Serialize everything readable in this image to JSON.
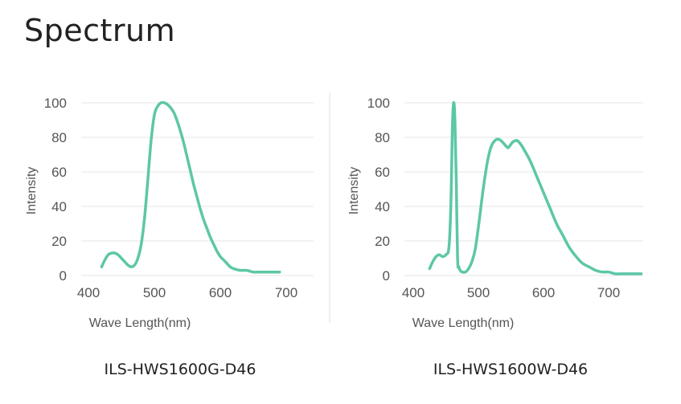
{
  "page": {
    "title": "Spectrum"
  },
  "colors": {
    "line": "#5cc7a6"
  },
  "chart_data": [
    {
      "type": "line",
      "title": "",
      "caption": "ILS-HWS1600G-D46",
      "xlabel": "Wave Length(nm)",
      "ylabel": "Intensity",
      "xlim": [
        400,
        700
      ],
      "ylim": [
        0,
        100
      ],
      "xticks": [
        400,
        500,
        600,
        700
      ],
      "yticks": [
        0,
        20,
        40,
        60,
        80,
        100
      ],
      "grid": "horizontal",
      "series": [
        {
          "x": [
            420,
            425,
            430,
            435,
            440,
            445,
            450,
            455,
            460,
            465,
            470,
            475,
            480,
            485,
            490,
            495,
            500,
            505,
            510,
            515,
            520,
            525,
            530,
            535,
            540,
            545,
            550,
            555,
            560,
            565,
            570,
            575,
            580,
            585,
            590,
            595,
            600,
            605,
            610,
            615,
            620,
            630,
            640,
            650,
            660,
            670,
            680,
            690
          ],
          "y": [
            5,
            9,
            12,
            13,
            13,
            12,
            10,
            8,
            6,
            5,
            6,
            10,
            18,
            33,
            55,
            78,
            93,
            98,
            100,
            100,
            99,
            97,
            94,
            89,
            83,
            76,
            68,
            60,
            52,
            45,
            38,
            32,
            27,
            22,
            18,
            14,
            11,
            9,
            7,
            5,
            4,
            3,
            3,
            2,
            2,
            2,
            2,
            2
          ]
        }
      ]
    },
    {
      "type": "line",
      "title": "",
      "caption": "ILS-HWS1600W-D46",
      "xlabel": "Wave Length(nm)",
      "ylabel": "Intensity",
      "xlim": [
        400,
        750
      ],
      "ylim": [
        0,
        100
      ],
      "xticks": [
        400,
        500,
        600,
        700
      ],
      "yticks": [
        0,
        20,
        40,
        60,
        80,
        100
      ],
      "grid": "horizontal",
      "series": [
        {
          "x": [
            425,
            430,
            435,
            440,
            445,
            450,
            455,
            458,
            460,
            462,
            464,
            466,
            468,
            470,
            472,
            475,
            480,
            485,
            490,
            495,
            500,
            505,
            510,
            515,
            520,
            525,
            530,
            535,
            540,
            545,
            548,
            552,
            556,
            560,
            565,
            570,
            580,
            590,
            600,
            610,
            620,
            630,
            640,
            650,
            660,
            670,
            680,
            690,
            700,
            710,
            720,
            730,
            740,
            750
          ],
          "y": [
            4,
            8,
            11,
            12,
            11,
            12,
            17,
            45,
            85,
            100,
            90,
            55,
            10,
            5,
            3,
            2,
            2,
            4,
            8,
            15,
            28,
            43,
            57,
            68,
            75,
            78,
            79,
            78,
            76,
            74,
            75,
            77,
            78,
            78,
            76,
            73,
            66,
            57,
            48,
            39,
            30,
            23,
            16,
            11,
            7,
            5,
            3,
            2,
            2,
            1,
            1,
            1,
            1,
            1
          ]
        }
      ]
    }
  ]
}
